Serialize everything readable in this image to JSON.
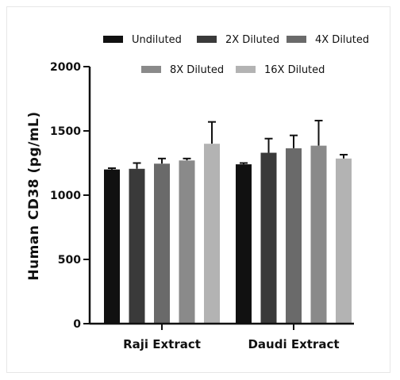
{
  "chart_data": {
    "type": "bar",
    "ylabel": "Human CD38 (pg/mL)",
    "xlabel": "",
    "ylim": [
      0,
      2000
    ],
    "yticks": [
      "0",
      "500",
      "1000",
      "1500",
      "2000"
    ],
    "categories": [
      "Raji Extract",
      "Daudi Extract"
    ],
    "legend_position": "top",
    "series": [
      {
        "name": "Undiluted",
        "color": "#111111",
        "values": [
          1200,
          1240
        ],
        "errors": [
          10,
          10
        ]
      },
      {
        "name": "2X Diluted",
        "color": "#3a3a3a",
        "values": [
          1205,
          1330
        ],
        "errors": [
          45,
          110
        ]
      },
      {
        "name": "4X Diluted",
        "color": "#6a6a6a",
        "values": [
          1245,
          1365
        ],
        "errors": [
          40,
          100
        ]
      },
      {
        "name": "8X Diluted",
        "color": "#8a8a8a",
        "values": [
          1270,
          1385
        ],
        "errors": [
          15,
          195
        ]
      },
      {
        "name": "16X Diluted",
        "color": "#b3b3b3",
        "values": [
          1400,
          1285
        ],
        "errors": [
          170,
          30
        ]
      }
    ]
  }
}
